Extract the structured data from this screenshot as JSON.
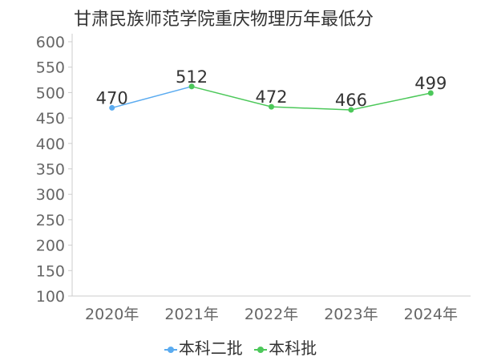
{
  "chart_data": {
    "type": "line",
    "title": "甘肃民族师范学院重庆物理历年最低分",
    "categories": [
      "2020年",
      "2021年",
      "2022年",
      "2023年",
      "2024年"
    ],
    "series": [
      {
        "name": "本科二批",
        "color": "#5aabf0",
        "values": [
          470,
          512,
          null,
          null,
          null
        ]
      },
      {
        "name": "本科批",
        "color": "#4cc85a",
        "values": [
          null,
          512,
          472,
          466,
          499
        ]
      }
    ],
    "data_labels": [
      "470",
      "512",
      "472",
      "466",
      "499"
    ],
    "yticks": [
      "100",
      "150",
      "200",
      "250",
      "300",
      "350",
      "400",
      "450",
      "500",
      "550",
      "600"
    ],
    "ylim": [
      100,
      600
    ],
    "grid": false,
    "legend_position": "bottom"
  }
}
